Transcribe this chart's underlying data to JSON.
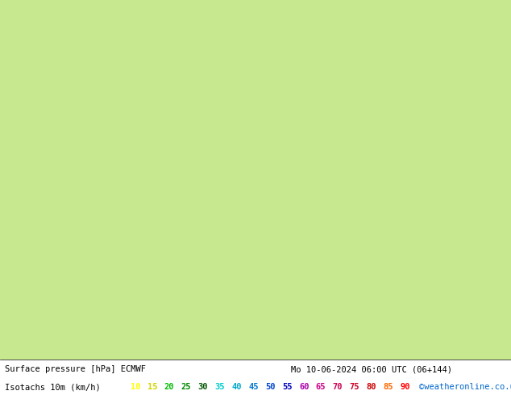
{
  "bg_color": "#ffffff",
  "land_color": "#c8e8a0",
  "sea_color": "#d0e8f0",
  "mountain_color": "#b0b0b0",
  "title_left": "Surface pressure [hPa] ECMWF",
  "title_right": "Mo 10-06-2024 06:00 UTC (06+144)",
  "legend_label": "Isotachs 10m (km/h)",
  "copyright": "©weatheronline.co.uk",
  "isotach_values": [
    10,
    15,
    20,
    25,
    30,
    35,
    40,
    45,
    50,
    55,
    60,
    65,
    70,
    75,
    80,
    85,
    90
  ],
  "isotach_colors": [
    "#ffff00",
    "#d4d400",
    "#00bb00",
    "#008800",
    "#005500",
    "#00cccc",
    "#00aacc",
    "#0077cc",
    "#0044cc",
    "#0000bb",
    "#aa00aa",
    "#cc0088",
    "#cc0055",
    "#cc0022",
    "#cc0000",
    "#ff6600",
    "#ff0000"
  ],
  "extent": [
    -30,
    45,
    27,
    72
  ],
  "figsize": [
    6.34,
    4.9
  ],
  "dpi": 100
}
